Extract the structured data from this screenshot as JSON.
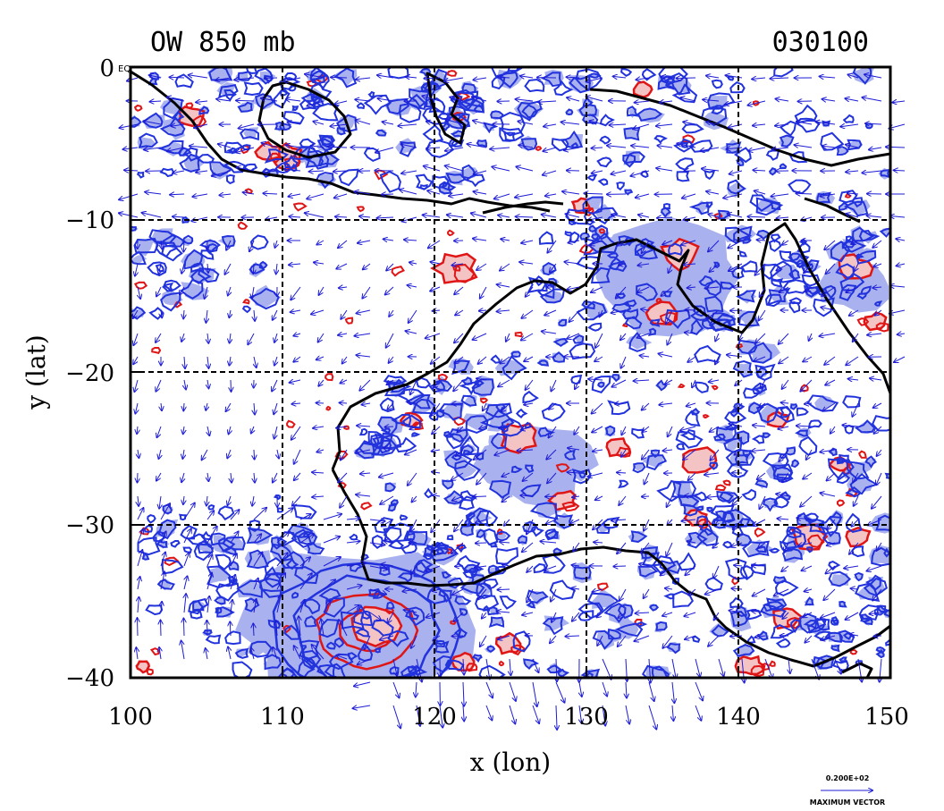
{
  "map": {
    "title_left": "OW 850 mb",
    "title_right": "030100",
    "x_label": "x (lon)",
    "y_label": "y (lat)",
    "equator_label": "EQ",
    "x_ticks": [
      "100",
      "110",
      "120",
      "130",
      "140",
      "150"
    ],
    "y_ticks": [
      "0",
      "−10",
      "−20",
      "−30",
      "−40"
    ],
    "x_range": [
      100,
      150
    ],
    "y_range": [
      -40,
      0
    ],
    "gridlines": "dashed, every 10 degrees",
    "vector_key_value": "0.200E+02",
    "vector_key_label": "MAXIMUM VECTOR",
    "colors": {
      "wind_vectors": "#1c1cd6",
      "contour_blue": "#2233dd",
      "shade_blue": "#a9b1ee",
      "contour_red": "#e01515",
      "shade_red": "#f4c4c4",
      "coastline": "#000000"
    }
  }
}
